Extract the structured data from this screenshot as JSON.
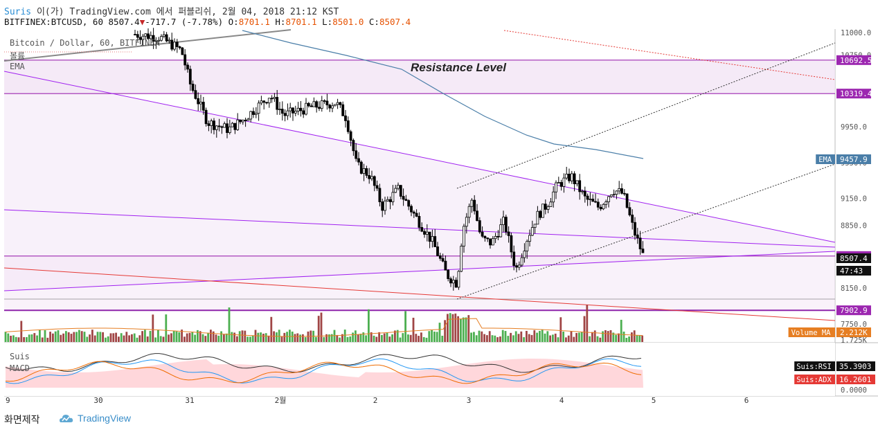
{
  "header": {
    "author": "Suris",
    "published": "이(가) TradingView.com 에서 퍼블리쉬, 2월 04, 2018 21:12 KST",
    "symbol": "BITFINEX:BTCUSD, 60",
    "last": "8507.4",
    "arrow": "▼",
    "change": "-717.7 (-7.78%)",
    "o_label": "O:",
    "o_value": "8701.1",
    "h_label": "H:",
    "h_value": "8701.1",
    "l_label": "L:",
    "l_value": "8501.0",
    "c_label": "C:",
    "c_value": "8507.4"
  },
  "legend": {
    "series": "Bitcoin / Dollar, 60, BITFINEX",
    "volume": "볼륨",
    "ema": "EMA",
    "indicator1": "Suis",
    "indicator2": "MACD"
  },
  "annotation": "Resistance Level",
  "price_axis": {
    "ticks": [
      "11000.0",
      "10750.0",
      "9950.0",
      "9550.0",
      "9150.0",
      "8850.0",
      "8150.0",
      "7750.0",
      "1.725K"
    ],
    "badges": [
      {
        "text": "10692.5",
        "color": "#9c27b0"
      },
      {
        "text": "10319.4",
        "color": "#9c27b0"
      },
      {
        "text": "9457.9",
        "prefix": "EMA",
        "color": "#4a7ea8"
      },
      {
        "text": "8507.8",
        "color": "#9c27b0"
      },
      {
        "text": "8507.4",
        "color": "#111111"
      },
      {
        "text": "47:43",
        "color": "#111111"
      },
      {
        "text": "7902.9",
        "color": "#9c27b0"
      },
      {
        "text": "2.212K",
        "prefix": "Volume MA",
        "color": "#e67e22"
      }
    ],
    "osc_ticks": [
      "0.0000"
    ],
    "osc_badges": [
      {
        "prefix": "Suis:RSI",
        "text": "35.3903",
        "color": "#111111"
      },
      {
        "prefix": "Suis:ADX",
        "text": "16.2601",
        "color": "#e53935"
      }
    ]
  },
  "time_axis": [
    "9",
    "30",
    "31",
    "2월",
    "2",
    "3",
    "4",
    "5",
    "6"
  ],
  "footer": {
    "label": "화면제작",
    "brand": "TradingView"
  },
  "colors": {
    "up": "#ffffff",
    "down": "#000000",
    "vol_up": "#4caf50",
    "vol_down": "#a04545",
    "purple": "#9c27b0",
    "ema": "#4a7ea8",
    "red": "#e53935"
  },
  "chart_data": {
    "type": "candlestick",
    "title": "Bitcoin / Dollar, 60, BITFINEX",
    "ylim": [
      7750,
      11000
    ],
    "levels": {
      "resistance_top": 10692.5,
      "resistance_bottom": 10319.4,
      "support_1": 8507.8,
      "support_2": 7902.9
    },
    "ema_last": 9457.9,
    "last_price": 8507.4,
    "volume_ma_last": 2212,
    "rsi_last": 35.3903,
    "adx_last": 16.2601
  }
}
